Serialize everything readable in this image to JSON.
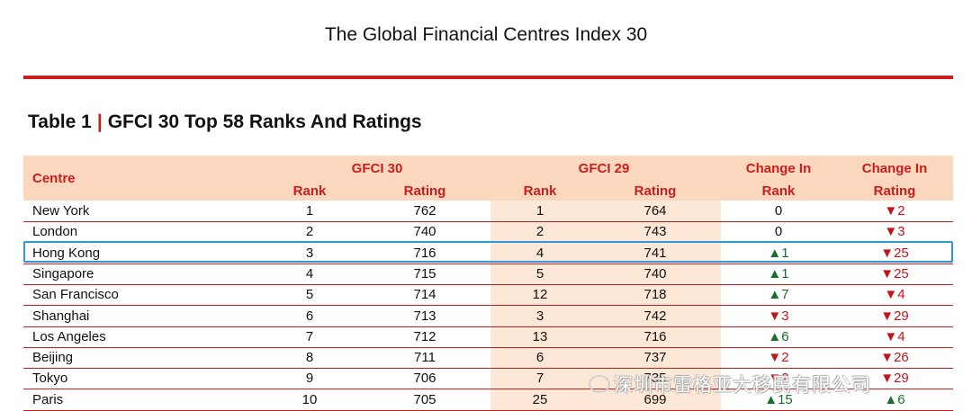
{
  "document": {
    "title": "The Global Financial Centres Index 30",
    "caption_prefix": "Table 1",
    "caption_sep": "|",
    "caption_text": "GFCI 30 Top 58 Ranks And Ratings"
  },
  "table": {
    "headers": {
      "centre": "Centre",
      "gfci30": "GFCI 30",
      "gfci29": "GFCI 29",
      "change_rank_top": "Change In",
      "change_rank_bottom": "Rank",
      "change_rating_top": "Change In",
      "change_rating_bottom": "Rating",
      "rank": "Rank",
      "rating": "Rating"
    },
    "rows": [
      {
        "centre": "New York",
        "rank30": "1",
        "rating30": "762",
        "rank29": "1",
        "rating29": "764",
        "change_rank": "0",
        "change_rank_dir": "none",
        "change_rating": "▼2",
        "change_rating_dir": "down"
      },
      {
        "centre": "London",
        "rank30": "2",
        "rating30": "740",
        "rank29": "2",
        "rating29": "743",
        "change_rank": "0",
        "change_rank_dir": "none",
        "change_rating": "▼3",
        "change_rating_dir": "down"
      },
      {
        "centre": "Hong Kong",
        "rank30": "3",
        "rating30": "716",
        "rank29": "4",
        "rating29": "741",
        "change_rank": "▲1",
        "change_rank_dir": "up",
        "change_rating": "▼25",
        "change_rating_dir": "down"
      },
      {
        "centre": "Singapore",
        "rank30": "4",
        "rating30": "715",
        "rank29": "5",
        "rating29": "740",
        "change_rank": "▲1",
        "change_rank_dir": "up",
        "change_rating": "▼25",
        "change_rating_dir": "down"
      },
      {
        "centre": "San Francisco",
        "rank30": "5",
        "rating30": "714",
        "rank29": "12",
        "rating29": "718",
        "change_rank": "▲7",
        "change_rank_dir": "up",
        "change_rating": "▼4",
        "change_rating_dir": "down"
      },
      {
        "centre": "Shanghai",
        "rank30": "6",
        "rating30": "713",
        "rank29": "3",
        "rating29": "742",
        "change_rank": "▼3",
        "change_rank_dir": "down",
        "change_rating": "▼29",
        "change_rating_dir": "down"
      },
      {
        "centre": "Los Angeles",
        "rank30": "7",
        "rating30": "712",
        "rank29": "13",
        "rating29": "716",
        "change_rank": "▲6",
        "change_rank_dir": "up",
        "change_rating": "▼4",
        "change_rating_dir": "down"
      },
      {
        "centre": "Beijing",
        "rank30": "8",
        "rating30": "711",
        "rank29": "6",
        "rating29": "737",
        "change_rank": "▼2",
        "change_rank_dir": "down",
        "change_rating": "▼26",
        "change_rating_dir": "down"
      },
      {
        "centre": "Tokyo",
        "rank30": "9",
        "rating30": "706",
        "rank29": "7",
        "rating29": "735",
        "change_rank": "▼2",
        "change_rank_dir": "down",
        "change_rating": "▼29",
        "change_rating_dir": "down"
      },
      {
        "centre": "Paris",
        "rank30": "10",
        "rating30": "705",
        "rank29": "25",
        "rating29": "699",
        "change_rank": "▲15",
        "change_rank_dir": "up",
        "change_rating": "▲6",
        "change_rating_dir": "up"
      }
    ]
  },
  "watermark": "深圳市雷格亚大移民有限公司",
  "colors": {
    "accent_red": "#cc1d1d",
    "header_bg": "#fad7bd",
    "band_bg": "#fde7d6",
    "up_green": "#17702b",
    "down_red": "#c0161b",
    "highlight_blue": "#2f98d8"
  },
  "highlighted_row": "Hong Kong"
}
